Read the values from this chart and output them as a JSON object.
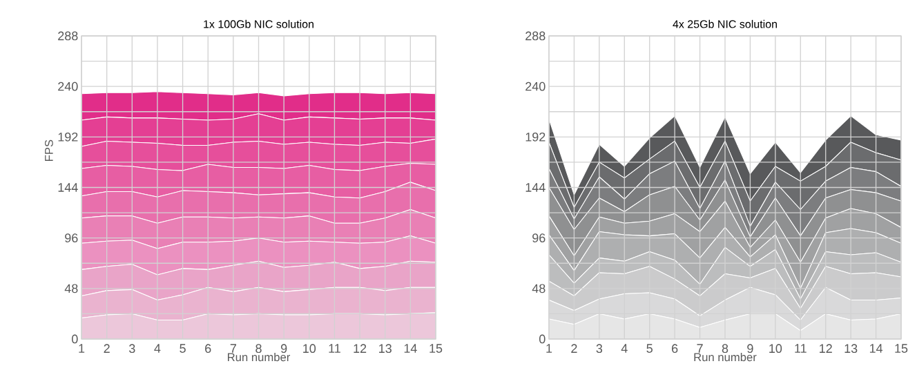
{
  "chart_data": [
    {
      "type": "area",
      "stacked": true,
      "title": "1x 100Gb NIC solution",
      "xlabel": "Run number",
      "ylabel": "FPS",
      "grid": true,
      "categories": [
        "1",
        "2",
        "3",
        "4",
        "5",
        "6",
        "7",
        "8",
        "9",
        "10",
        "11",
        "12",
        "13",
        "14",
        "15"
      ],
      "ylim": [
        0,
        288
      ],
      "yticks": [
        0,
        {
          "value": 24,
          "label": null
        },
        48,
        {
          "value": 72,
          "label": null
        },
        96,
        {
          "value": 120,
          "label": null
        },
        144,
        {
          "value": 168,
          "label": null
        },
        192,
        {
          "value": 216,
          "label": null
        },
        240,
        {
          "value": 264,
          "label": null
        },
        288
      ],
      "series": [
        {
          "color": "#ecc7da",
          "values": [
            20,
            23,
            24,
            18,
            18,
            24,
            23,
            24,
            23,
            23,
            24,
            24,
            23,
            24,
            25
          ]
        },
        {
          "color": "#eab3cf",
          "values": [
            21,
            23,
            23,
            19,
            24,
            25,
            22,
            25,
            22,
            24,
            25,
            25,
            23,
            25,
            24
          ]
        },
        {
          "color": "#e9a4c8",
          "values": [
            25,
            23,
            24,
            24,
            25,
            17,
            25,
            25,
            23,
            23,
            24,
            18,
            23,
            25,
            24
          ]
        },
        {
          "color": "#eb91c0",
          "values": [
            25,
            24,
            23,
            25,
            25,
            26,
            23,
            22,
            24,
            23,
            19,
            24,
            23,
            24,
            18
          ]
        },
        {
          "color": "#e980b5",
          "values": [
            24,
            24,
            23,
            24,
            24,
            24,
            22,
            20,
            23,
            24,
            18,
            19,
            23,
            25,
            24
          ]
        },
        {
          "color": "#e86fac",
          "values": [
            21,
            23,
            23,
            25,
            25,
            24,
            24,
            21,
            23,
            22,
            25,
            24,
            25,
            26,
            26
          ]
        },
        {
          "color": "#e75ea3",
          "values": [
            26,
            25,
            24,
            26,
            19,
            26,
            24,
            26,
            24,
            26,
            26,
            26,
            24,
            18,
            25
          ]
        },
        {
          "color": "#e64f9b",
          "values": [
            21,
            23,
            23,
            25,
            24,
            18,
            24,
            25,
            23,
            22,
            24,
            24,
            23,
            19,
            24
          ]
        },
        {
          "color": "#e43f93",
          "values": [
            25,
            23,
            23,
            24,
            25,
            24,
            22,
            26,
            23,
            24,
            25,
            25,
            23,
            24,
            18
          ]
        },
        {
          "color": "#e12d89",
          "values": [
            25,
            23,
            24,
            25,
            25,
            25,
            23,
            20,
            23,
            22,
            24,
            25,
            23,
            24,
            25
          ]
        }
      ]
    },
    {
      "type": "area",
      "stacked": true,
      "title": "4x 25Gb NIC solution",
      "xlabel": "Run number",
      "grid": true,
      "categories": [
        "1",
        "2",
        "3",
        "4",
        "5",
        "6",
        "7",
        "8",
        "9",
        "10",
        "11",
        "12",
        "13",
        "14",
        "15"
      ],
      "ylim": [
        0,
        288
      ],
      "yticks": [
        0,
        {
          "value": 24,
          "label": null
        },
        48,
        {
          "value": 72,
          "label": null
        },
        96,
        {
          "value": 120,
          "label": null
        },
        144,
        {
          "value": 168,
          "label": null
        },
        192,
        {
          "value": 216,
          "label": null
        },
        240,
        {
          "value": 264,
          "label": null
        },
        288
      ],
      "series": [
        {
          "color": "#e6e6e6",
          "values": [
            19,
            14,
            24,
            19,
            24,
            19,
            11,
            18,
            24,
            24,
            8,
            24,
            18,
            19,
            24
          ]
        },
        {
          "color": "#d9d9da",
          "values": [
            18,
            13,
            14,
            24,
            20,
            19,
            11,
            19,
            25,
            18,
            10,
            25,
            19,
            18,
            15
          ]
        },
        {
          "color": "#cbcbcc",
          "values": [
            18,
            14,
            25,
            19,
            25,
            19,
            19,
            25,
            9,
            25,
            11,
            20,
            25,
            26,
            20
          ]
        },
        {
          "color": "#bcbdbe",
          "values": [
            25,
            12,
            14,
            12,
            14,
            18,
            11,
            25,
            11,
            18,
            9,
            14,
            18,
            19,
            14
          ]
        },
        {
          "color": "#aeafb0",
          "values": [
            19,
            12,
            25,
            25,
            15,
            25,
            25,
            19,
            9,
            14,
            10,
            18,
            25,
            19,
            18
          ]
        },
        {
          "color": "#a0a1a2",
          "values": [
            18,
            14,
            14,
            11,
            14,
            19,
            25,
            25,
            9,
            14,
            25,
            14,
            19,
            18,
            15
          ]
        },
        {
          "color": "#8f9091",
          "values": [
            27,
            25,
            18,
            11,
            25,
            26,
            11,
            20,
            10,
            21,
            25,
            19,
            18,
            20,
            25
          ]
        },
        {
          "color": "#7c7d7f",
          "values": [
            18,
            10,
            20,
            12,
            20,
            24,
            11,
            18,
            10,
            15,
            25,
            16,
            21,
            20,
            14
          ]
        },
        {
          "color": "#6b6c6e",
          "values": [
            25,
            11,
            14,
            20,
            14,
            19,
            20,
            19,
            24,
            15,
            27,
            14,
            24,
            18,
            25
          ]
        },
        {
          "color": "#58595b",
          "values": [
            22,
            12,
            17,
            11,
            20,
            24,
            19,
            23,
            26,
            23,
            8,
            25,
            25,
            17,
            19
          ]
        }
      ]
    }
  ]
}
